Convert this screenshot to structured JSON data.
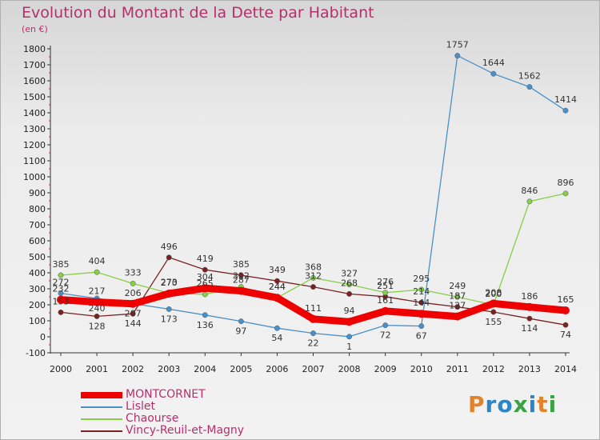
{
  "header": {
    "title": "Evolution du Montant de la Dette par Habitant",
    "unit": "(en €)"
  },
  "logo": {
    "text": "Proxiti"
  },
  "chart_data": {
    "type": "line",
    "title": "Evolution du Montant de la Dette par Habitant",
    "ylabel": "(en €)",
    "xlabel": "",
    "x": [
      2000,
      2001,
      2002,
      2003,
      2004,
      2005,
      2006,
      2007,
      2008,
      2009,
      2010,
      2011,
      2012,
      2013,
      2014
    ],
    "ylim": [
      -100,
      1800
    ],
    "yticks": [
      -100,
      0,
      100,
      200,
      300,
      400,
      500,
      600,
      700,
      800,
      900,
      1000,
      1100,
      1200,
      1300,
      1400,
      1500,
      1600,
      1700,
      1800
    ],
    "grid": false,
    "legend_position": "bottom-left",
    "series": [
      {
        "name": "MONTCORNET",
        "color": "#ee0000",
        "values": [
          232,
          217,
          206,
          270,
          304,
          287,
          244,
          111,
          94,
          161,
          144,
          127,
          208,
          186,
          165
        ]
      },
      {
        "name": "Lislet",
        "color": "#4a90c8",
        "values": [
          272,
          240,
          207,
          173,
          136,
          97,
          54,
          22,
          1,
          72,
          67,
          1757,
          1644,
          1562,
          1414
        ]
      },
      {
        "name": "Chaourse",
        "color": "#86cf46",
        "values": [
          385,
          404,
          333,
          273,
          265,
          312,
          244,
          368,
          327,
          276,
          295,
          249,
          200,
          846,
          896
        ]
      },
      {
        "name": "Vincy-Reuil-et-Magny",
        "color": "#7a2222",
        "values": [
          153,
          128,
          144,
          496,
          419,
          385,
          349,
          312,
          268,
          251,
          214,
          187,
          155,
          114,
          74
        ]
      }
    ]
  }
}
